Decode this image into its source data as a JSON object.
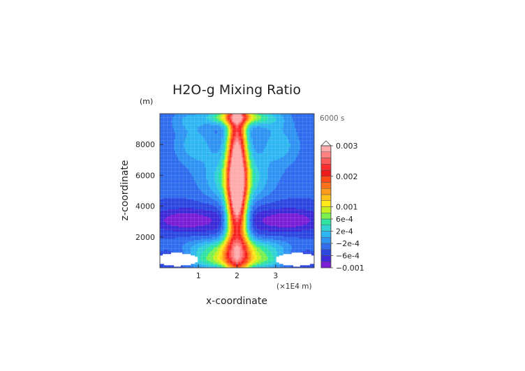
{
  "chart_data": {
    "type": "heatmap",
    "title": "H2O-g Mixing Ratio",
    "xlabel": "x-coordinate",
    "ylabel": "z-coordinate",
    "x_unit": "(×1E4 m)",
    "y_unit": "(m)",
    "time_label": "6000 s",
    "xlim": [
      0,
      4
    ],
    "ylim": [
      0,
      10000
    ],
    "x_ticks": [
      1,
      2,
      3
    ],
    "y_ticks": [
      2000,
      4000,
      6000,
      8000
    ],
    "grid": false,
    "legend_position": "right",
    "colorbar": {
      "levels": [
        -0.001,
        -0.0008,
        -0.0006,
        -0.0004,
        -0.0002,
        0,
        0.0002,
        0.0004,
        0.0006,
        0.0008,
        0.001,
        0.0012,
        0.0014,
        0.0016,
        0.0018,
        0.002,
        0.0022,
        0.0024,
        0.0026,
        0.0028,
        0.003
      ],
      "colors": [
        "#7a1fd6",
        "#3d2ad8",
        "#2c47e0",
        "#2f6cee",
        "#2f93f2",
        "#2fb6f2",
        "#30d2d6",
        "#30e3a3",
        "#7cf04f",
        "#c8f020",
        "#ffe81a",
        "#ffc21a",
        "#ff9a1a",
        "#ff701a",
        "#ff4a1a",
        "#ef1a1a",
        "#ff2f2f",
        "#ff5a5a",
        "#ff8080",
        "#ffabab"
      ],
      "tick_labels": [
        {
          "value": 0.003,
          "label": "0.003"
        },
        {
          "value": 0.002,
          "label": "0.002"
        },
        {
          "value": 0.001,
          "label": "0.001"
        },
        {
          "value": 0.0006,
          "label": "6e-4"
        },
        {
          "value": 0.0002,
          "label": "2e-4"
        },
        {
          "value": -0.0002,
          "label": "−2e-4"
        },
        {
          "value": -0.0006,
          "label": "−6e-4"
        },
        {
          "value": -0.001,
          "label": "−0.001"
        }
      ]
    }
  }
}
